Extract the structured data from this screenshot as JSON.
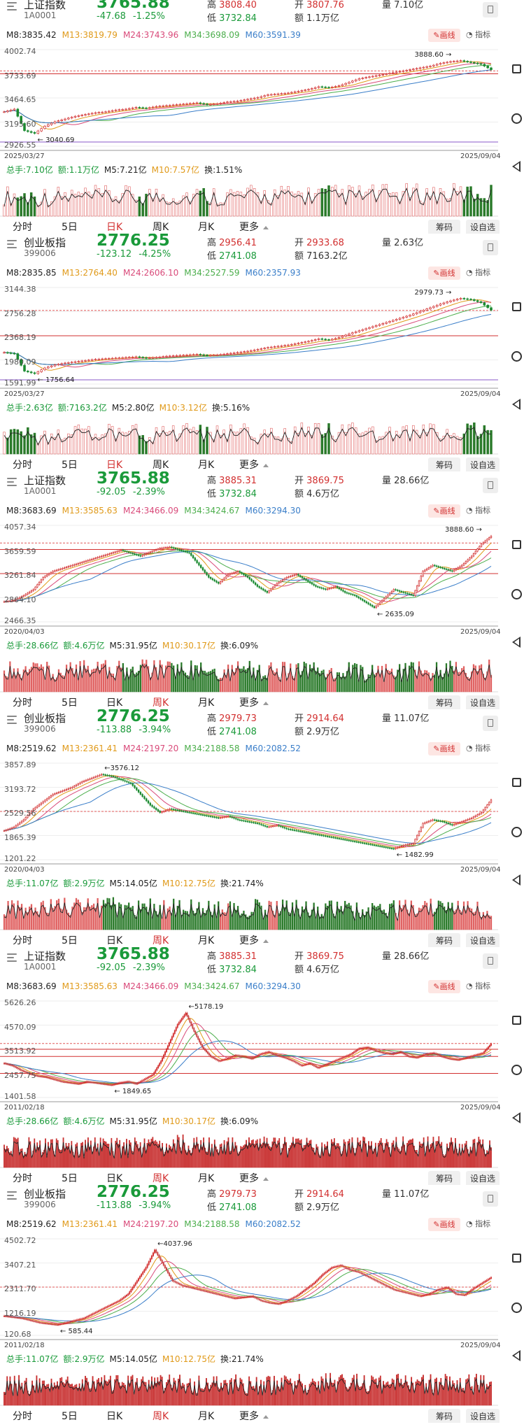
{
  "panels": [
    {
      "index_name": "上证指数",
      "index_code": "1A0001",
      "price": "3765.88",
      "change": "-47.68",
      "change_pct": "-1.25%",
      "quotes": {
        "high_label": "高",
        "high": "3808.40",
        "low_label": "低",
        "low": "3732.84",
        "open_label": "开",
        "open": "3807.76",
        "amount_label": "额",
        "amount": "1.1万亿",
        "volume_label": "量",
        "volume": "7.10亿"
      },
      "ma_labels": [
        "M8:3835.42",
        "M13:3819.79",
        "M24:3743.96",
        "M34:3698.09",
        "M60:3591.39"
      ],
      "draw_label": "画线",
      "indicator_label": "指标",
      "y_labels": [
        "4002.74",
        "3733.69",
        "3464.65",
        "3195.60",
        "2926.55"
      ],
      "start_date": "2025/03/27",
      "end_date": "2025/09/04",
      "high_annotation": "3888.60",
      "low_annotation": "3040.69",
      "vol_labels": [
        "总手:7.10亿",
        "额:1.1万亿",
        "M5:7.21亿",
        "M10:7.57亿",
        "换:1.51%"
      ],
      "tabs": [
        "分时",
        "5日",
        "日K",
        "周K",
        "月K",
        "更多"
      ],
      "active_tab": 2,
      "action_buttons": [
        "筹码",
        "设自选"
      ],
      "trend": [
        3310,
        3340,
        3100,
        3070,
        3150,
        3200,
        3230,
        3260,
        3280,
        3300,
        3310,
        3330,
        3340,
        3360,
        3350,
        3370,
        3380,
        3390,
        3400,
        3410,
        3390,
        3400,
        3420,
        3430,
        3450,
        3470,
        3500,
        3510,
        3520,
        3540,
        3560,
        3590,
        3580,
        3600,
        3640,
        3680,
        3700,
        3720,
        3740,
        3760,
        3780,
        3800,
        3820,
        3850,
        3870,
        3880,
        3860,
        3840,
        3780
      ],
      "trend_range": [
        2926.55,
        4002.74
      ],
      "ref_lines": [
        3765.88,
        3733.69
      ],
      "chart_style": "daily"
    },
    {
      "index_name": "创业板指",
      "index_code": "399006",
      "price": "2776.25",
      "change": "-123.12",
      "change_pct": "-4.25%",
      "quotes": {
        "high_label": "高",
        "high": "2956.41",
        "low_label": "低",
        "low": "2741.08",
        "open_label": "开",
        "open": "2933.68",
        "amount_label": "额",
        "amount": "7163.2亿",
        "volume_label": "量",
        "volume": "2.63亿"
      },
      "ma_labels": [
        "M8:2835.85",
        "M13:2764.40",
        "M24:2606.10",
        "M34:2527.59",
        "M60:2357.93"
      ],
      "draw_label": "画线",
      "indicator_label": "指标",
      "y_labels": [
        "3144.38",
        "2756.28",
        "2368.19",
        "1980.09",
        "1591.99"
      ],
      "start_date": "2025/03/27",
      "end_date": "2025/09/04",
      "high_annotation": "2979.73",
      "low_annotation": "1756.64",
      "vol_labels": [
        "总手:2.63亿",
        "额:7163.2亿",
        "M5:2.80亿",
        "M10:3.12亿",
        "换:5.16%"
      ],
      "tabs": [
        "分时",
        "5日",
        "日K",
        "周K",
        "月K",
        "更多"
      ],
      "active_tab": 2,
      "action_buttons": [
        "筹码",
        "设自选"
      ],
      "trend": [
        2100,
        2080,
        1800,
        1760,
        1850,
        1900,
        1930,
        1950,
        1970,
        1990,
        2000,
        2010,
        2020,
        2030,
        2010,
        2020,
        2040,
        2050,
        2060,
        2070,
        2050,
        2060,
        2080,
        2100,
        2120,
        2150,
        2180,
        2200,
        2220,
        2250,
        2280,
        2320,
        2300,
        2340,
        2400,
        2450,
        2500,
        2550,
        2600,
        2650,
        2700,
        2760,
        2820,
        2880,
        2930,
        2970,
        2950,
        2900,
        2780
      ],
      "trend_range": [
        1591.99,
        3144.38
      ],
      "ref_lines": [
        2776.25,
        2368.19
      ],
      "chart_style": "daily"
    },
    {
      "index_name": "上证指数",
      "index_code": "1A0001",
      "price": "3765.88",
      "change": "-92.05",
      "change_pct": "-2.39%",
      "quotes": {
        "high_label": "高",
        "high": "3885.31",
        "low_label": "低",
        "low": "3732.84",
        "open_label": "开",
        "open": "3869.75",
        "amount_label": "额",
        "amount": "4.6万亿",
        "volume_label": "量",
        "volume": "28.66亿"
      },
      "ma_labels": [
        "M8:3683.69",
        "M13:3585.63",
        "M24:3466.09",
        "M34:3424.67",
        "M60:3294.30"
      ],
      "draw_label": "画线",
      "indicator_label": "指标",
      "y_labels": [
        "4057.34",
        "3659.59",
        "3261.84",
        "2864.10",
        "2466.35"
      ],
      "start_date": "2020/04/03",
      "end_date": "2025/09/04",
      "high_annotation": "3888.60",
      "low_annotation": "2635.09",
      "vol_labels": [
        "总手:28.66亿",
        "额:4.6万亿",
        "M5:31.95亿",
        "M10:30.17亿",
        "换:6.09%"
      ],
      "tabs": [
        "分时",
        "5日",
        "日K",
        "周K",
        "月K",
        "更多"
      ],
      "active_tab": 3,
      "action_buttons": [
        "筹码",
        "设自选"
      ],
      "trend": [
        2800,
        2820,
        2900,
        3000,
        3200,
        3300,
        3350,
        3400,
        3450,
        3500,
        3550,
        3600,
        3650,
        3600,
        3550,
        3620,
        3680,
        3700,
        3650,
        3600,
        3400,
        3200,
        3100,
        3250,
        3300,
        3200,
        3050,
        2950,
        3100,
        3200,
        3250,
        3150,
        3050,
        3000,
        3050,
        2950,
        2900,
        2800,
        2700,
        2850,
        3000,
        2950,
        2900,
        3300,
        3400,
        3350,
        3300,
        3400,
        3550,
        3750,
        3880
      ],
      "trend_range": [
        2466.35,
        4057.34
      ],
      "ref_lines": [
        3765.88,
        3659.59,
        3261.84
      ],
      "chart_style": "weekly"
    },
    {
      "index_name": "创业板指",
      "index_code": "399006",
      "price": "2776.25",
      "change": "-113.88",
      "change_pct": "-3.94%",
      "quotes": {
        "high_label": "高",
        "high": "2979.73",
        "low_label": "低",
        "low": "2741.08",
        "open_label": "开",
        "open": "2914.64",
        "amount_label": "额",
        "amount": "2.9万亿",
        "volume_label": "量",
        "volume": "11.07亿"
      },
      "ma_labels": [
        "M8:2519.62",
        "M13:2361.41",
        "M24:2197.20",
        "M34:2188.58",
        "M60:2082.52"
      ],
      "draw_label": "画线",
      "indicator_label": "指标",
      "y_labels": [
        "3857.89",
        "3193.72",
        "2529.56",
        "1865.39",
        "1201.22"
      ],
      "start_date": "2020/04/03",
      "end_date": "2025/09/04",
      "high_annotation": "3576.12",
      "low_annotation": "1482.99",
      "vol_labels": [
        "总手:11.07亿",
        "额:2.9万亿",
        "M5:14.05亿",
        "M10:12.75亿",
        "换:21.74%"
      ],
      "tabs": [
        "分时",
        "5日",
        "日K",
        "周K",
        "月K",
        "更多"
      ],
      "active_tab": 3,
      "action_buttons": [
        "筹码",
        "设自选"
      ],
      "trend": [
        2000,
        2100,
        2300,
        2600,
        2800,
        3000,
        3100,
        3200,
        3350,
        3450,
        3550,
        3500,
        3400,
        3300,
        3000,
        2700,
        2500,
        2600,
        2550,
        2500,
        2450,
        2400,
        2350,
        2400,
        2300,
        2250,
        2200,
        2100,
        2150,
        2050,
        2000,
        1950,
        1900,
        1850,
        1800,
        1750,
        1700,
        1650,
        1600,
        1550,
        1500,
        1600,
        1650,
        2200,
        2300,
        2250,
        2150,
        2250,
        2350,
        2500,
        2850
      ],
      "trend_range": [
        1201.22,
        3857.89
      ],
      "ref_lines": [
        2529.56
      ],
      "chart_style": "weekly"
    },
    {
      "index_name": "上证指数",
      "index_code": "1A0001",
      "price": "3765.88",
      "change": "-92.05",
      "change_pct": "-2.39%",
      "quotes": {
        "high_label": "高",
        "high": "3885.31",
        "low_label": "低",
        "low": "3732.84",
        "open_label": "开",
        "open": "3869.75",
        "amount_label": "额",
        "amount": "4.6万亿",
        "volume_label": "量",
        "volume": "28.66亿"
      },
      "ma_labels": [
        "M8:3683.69",
        "M13:3585.63",
        "M24:3466.09",
        "M34:3424.67",
        "M60:3294.30"
      ],
      "draw_label": "画线",
      "indicator_label": "指标",
      "y_labels": [
        "5626.26",
        "4570.09",
        "3513.92",
        "2457.75",
        "1401.58"
      ],
      "start_date": "2011/02/18",
      "end_date": "2025/09/04",
      "high_annotation": "5178.19",
      "low_annotation": "1849.65",
      "vol_labels": [
        "总手:28.66亿",
        "额:4.6万亿",
        "M5:31.95亿",
        "M10:30.17亿",
        "换:6.09%"
      ],
      "tabs": [
        "分时",
        "5日",
        "日K",
        "周K",
        "月K",
        "更多"
      ],
      "active_tab": 3,
      "action_buttons": [
        "筹码",
        "设自选"
      ],
      "trend": [
        2900,
        2800,
        2600,
        2450,
        2350,
        2300,
        2200,
        2100,
        2050,
        2000,
        2100,
        2050,
        2000,
        1950,
        2050,
        2100,
        2000,
        2200,
        2400,
        3000,
        3800,
        4600,
        5100,
        4300,
        3600,
        3200,
        3000,
        3100,
        3250,
        3200,
        3100,
        3300,
        3400,
        3250,
        3150,
        3000,
        2800,
        2900,
        2700,
        2850,
        3000,
        3150,
        3300,
        3550,
        3600,
        3450,
        3350,
        3300,
        3400,
        3200,
        3150,
        3300,
        3350,
        3200,
        3100,
        3050,
        3150,
        3250,
        3350,
        3750
      ],
      "trend_range": [
        1401.58,
        5626.26
      ],
      "ref_lines": [
        3765.88,
        3513.92,
        3200,
        2457.75
      ],
      "chart_style": "weekly-red"
    },
    {
      "index_name": "创业板指",
      "index_code": "399006",
      "price": "2776.25",
      "change": "-113.88",
      "change_pct": "-3.94%",
      "quotes": {
        "high_label": "高",
        "high": "2979.73",
        "low_label": "低",
        "low": "2741.08",
        "open_label": "开",
        "open": "2914.64",
        "amount_label": "额",
        "amount": "2.9万亿",
        "volume_label": "量",
        "volume": "11.07亿"
      },
      "ma_labels": [
        "M8:2519.62",
        "M13:2361.41",
        "M24:2197.20",
        "M34:2188.58",
        "M60:2082.52"
      ],
      "draw_label": "画线",
      "indicator_label": "指标",
      "y_labels": [
        "4502.72",
        "3407.21",
        "2311.70",
        "1216.19",
        "120.68"
      ],
      "start_date": "2011/02/18",
      "end_date": "2025/09/04",
      "high_annotation": "4037.96",
      "low_annotation": "585.44",
      "vol_labels": [
        "总手:11.07亿",
        "额:2.9万亿",
        "M5:14.05亿",
        "M10:12.75亿",
        "换:21.74%"
      ],
      "tabs": [
        "分时",
        "5日",
        "日K",
        "周K",
        "月K",
        "更多"
      ],
      "active_tab": 3,
      "action_buttons": [
        "筹码",
        "设自选"
      ],
      "trend": [
        1000,
        950,
        900,
        800,
        700,
        650,
        600,
        700,
        800,
        900,
        1100,
        1300,
        1500,
        1700,
        2000,
        2600,
        3200,
        4000,
        3300,
        2600,
        2400,
        2300,
        2200,
        2100,
        2000,
        1900,
        1800,
        1850,
        1900,
        1700,
        1600,
        1550,
        1700,
        1900,
        2200,
        2500,
        2900,
        3200,
        3300,
        3100,
        3000,
        2800,
        2600,
        2400,
        2200,
        2100,
        2000,
        1900,
        2000,
        2200,
        2300,
        2000,
        1950,
        2250,
        2500,
        2750
      ],
      "trend_range": [
        120.68,
        4502.72
      ],
      "ref_lines": [
        2311.7
      ],
      "chart_style": "weekly-red"
    }
  ],
  "right_rail": [
    "recent-apps-button",
    "home-button",
    "back-button"
  ]
}
